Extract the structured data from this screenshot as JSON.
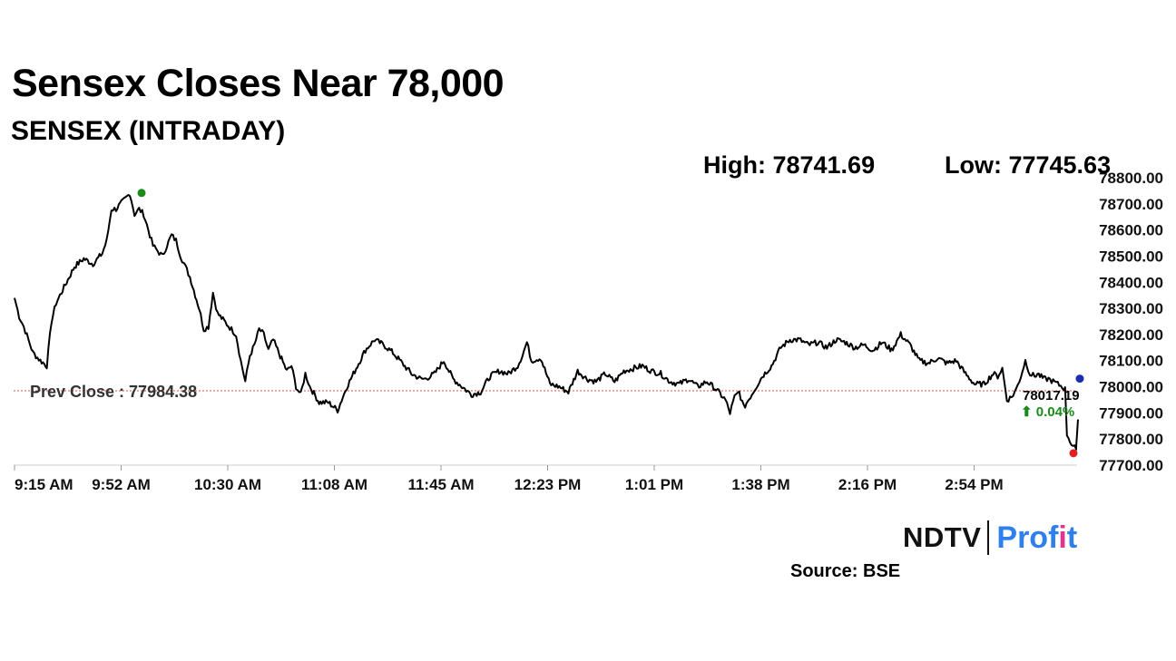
{
  "headline": "Sensex Closes Near 78,000",
  "high_label": "High: 78741.69",
  "low_label": "Low: 77745.63",
  "source": "Source: BSE",
  "brand": {
    "left": "NDTV",
    "right_pre": "Prof",
    "right_i": "i",
    "right_post": "t"
  },
  "colors": {
    "line": "#000000",
    "prev_close": "#d9534f",
    "high_dot": "#1a8a1a",
    "low_dot": "#e02020",
    "last_dot": "#1a2fb0",
    "up": "#1a8a1a"
  },
  "chart_data": {
    "type": "line",
    "title": "SENSEX (INTRADAY)",
    "ylim": [
      77700,
      78800
    ],
    "yticks": [
      "78800.00",
      "78700.00",
      "78600.00",
      "78500.00",
      "78400.00",
      "78300.00",
      "78200.00",
      "78100.00",
      "78000.00",
      "77900.00",
      "77800.00",
      "77700.00"
    ],
    "xticks": [
      "9:15 AM",
      "9:52 AM",
      "10:30 AM",
      "11:08 AM",
      "11:45 AM",
      "12:23 PM",
      "1:01 PM",
      "1:38 PM",
      "2:16 PM",
      "2:54 PM"
    ],
    "prev_close": 77984.38,
    "prev_close_label": "Prev Close : 77984.38",
    "last_value_label": "78017.19",
    "change_label": "⬆ 0.04%",
    "series": [
      {
        "x": [
          0,
          5,
          10,
          15,
          20,
          28,
          35,
          40,
          45,
          55,
          65,
          75,
          85,
          95,
          100,
          105,
          110,
          120,
          125,
          130,
          135,
          140,
          145,
          150,
          155,
          160,
          165,
          170,
          175,
          180,
          185,
          190,
          200,
          205,
          210,
          215,
          220,
          230,
          235,
          240,
          245,
          250,
          255,
          260,
          265,
          270,
          275,
          280,
          285,
          295,
          300,
          305,
          310,
          315,
          320,
          330,
          340,
          350,
          360,
          370,
          380,
          390,
          400,
          410,
          420,
          430,
          440,
          445,
          455,
          465,
          475,
          485,
          495,
          505,
          515,
          525,
          535,
          545,
          550,
          555,
          560,
          570,
          580,
          590,
          600,
          610,
          620,
          630,
          640,
          650,
          660,
          670,
          680,
          690,
          700,
          710,
          720,
          730,
          740,
          750,
          760,
          770,
          775,
          780,
          785,
          790,
          800,
          810,
          820,
          830,
          840,
          850,
          860,
          870,
          880,
          890,
          900,
          910,
          920,
          930,
          940,
          950,
          960,
          970,
          980,
          990,
          1000,
          1010,
          1020,
          1030,
          1040,
          1050,
          1060,
          1065,
          1070,
          1075,
          1080,
          1085,
          1090,
          1095,
          1100,
          1105,
          1108,
          1115,
          1120,
          1125,
          1130,
          1135,
          1138,
          1140,
          1145,
          1150
        ],
        "y": [
          78340,
          78270,
          78230,
          78180,
          78130,
          78100,
          78080,
          78250,
          78320,
          78390,
          78460,
          78490,
          78470,
          78510,
          78560,
          78680,
          78680,
          78720,
          78740,
          78660,
          78680,
          78660,
          78600,
          78540,
          78520,
          78500,
          78540,
          78580,
          78560,
          78500,
          78460,
          78420,
          78300,
          78220,
          78230,
          78360,
          78280,
          78240,
          78220,
          78200,
          78100,
          78020,
          78120,
          78160,
          78220,
          78200,
          78140,
          78180,
          78140,
          78060,
          78080,
          78000,
          77970,
          78050,
          78000,
          77940,
          77940,
          77910,
          78000,
          78070,
          78140,
          78180,
          78160,
          78130,
          78090,
          78050,
          78030,
          78030,
          78050,
          78100,
          78030,
          78000,
          77970,
          77980,
          78040,
          78060,
          78050,
          78080,
          78120,
          78170,
          78100,
          78110,
          78010,
          78000,
          77980,
          78060,
          78030,
          78020,
          78050,
          78020,
          78060,
          78070,
          78080,
          78060,
          78050,
          78020,
          78010,
          78030,
          78000,
          78020,
          77990,
          77950,
          77900,
          77960,
          77980,
          77920,
          77980,
          78040,
          78080,
          78150,
          78180,
          78180,
          78160,
          78170,
          78150,
          78180,
          78170,
          78150,
          78160,
          78140,
          78170,
          78140,
          78200,
          78160,
          78100,
          78090,
          78110,
          78090,
          78100,
          78050,
          78010,
          78010,
          78050,
          78040,
          78070,
          77950,
          77960,
          77990,
          78040,
          78100,
          78050,
          78040,
          78050,
          78030,
          78030,
          78020,
          78010,
          78000,
          77990,
          77820,
          77780,
          77760
        ]
      }
    ],
    "high_value": 78741.69,
    "low_value": 77745.63,
    "last_value": 78017.19
  }
}
